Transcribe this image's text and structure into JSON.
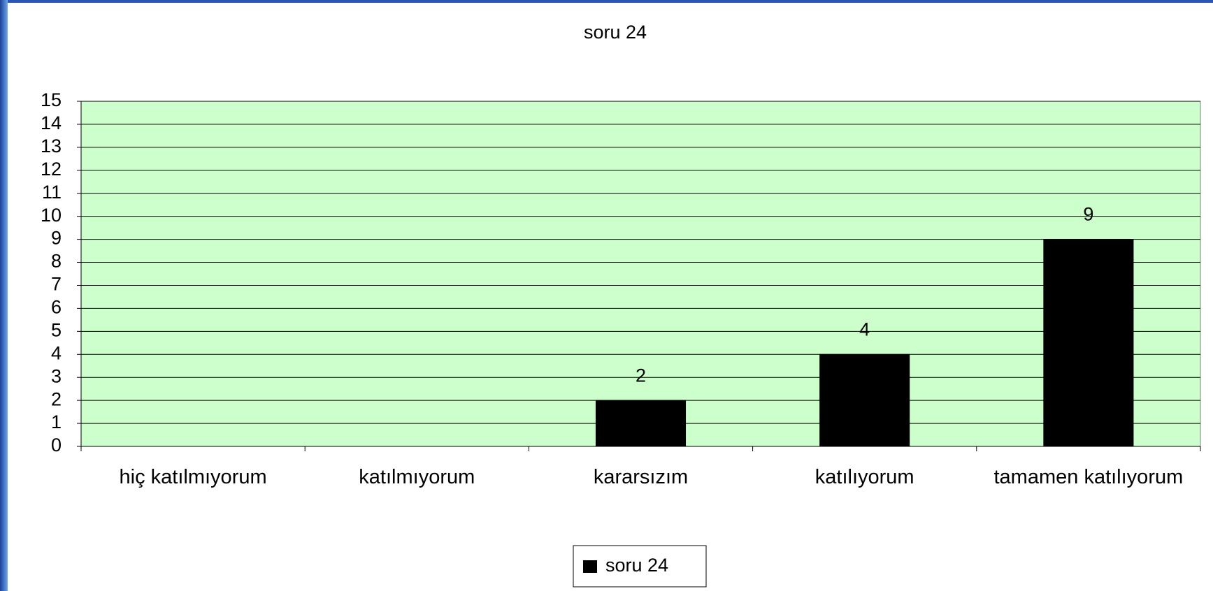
{
  "chart_data": {
    "type": "bar",
    "title": "soru 24",
    "categories": [
      "hiç katılmıyorum",
      "katılmıyorum",
      "kararsızım",
      "katılıyorum",
      "tamamen katılıyorum"
    ],
    "series": [
      {
        "name": "soru 24",
        "color": "#000000",
        "values": [
          null,
          null,
          2,
          4,
          9
        ]
      }
    ],
    "ylim": [
      0,
      15
    ],
    "yticks": [
      0,
      1,
      2,
      3,
      4,
      5,
      6,
      7,
      8,
      9,
      10,
      11,
      12,
      13,
      14,
      15
    ],
    "grid": true,
    "legend": "bottom"
  }
}
